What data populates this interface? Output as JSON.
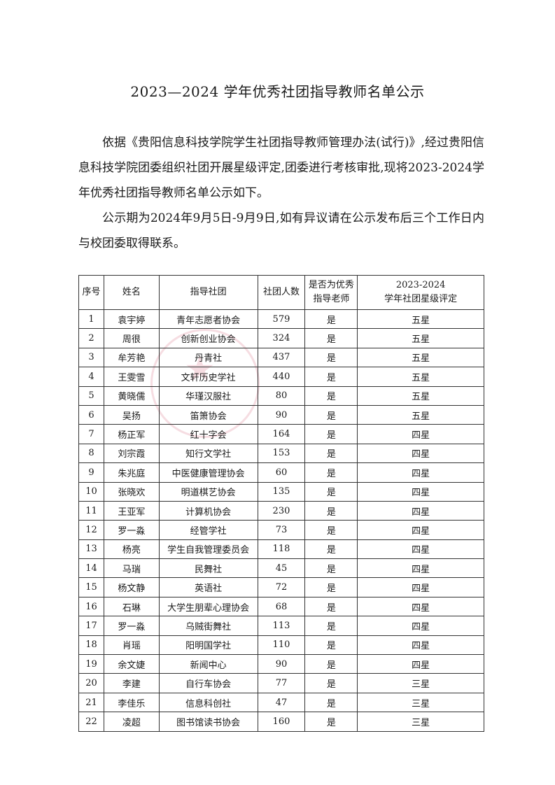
{
  "title": "2023—2024 学年优秀社团指导教师名单公示",
  "paragraphs": [
    "依据《贵阳信息科技学院学生社团指导教师管理办法(试行)》,经过贵阳信息科技学院团委组织社团开展星级评定,团委进行考核审批,现将2023-2024学年优秀社团指导教师名单公示如下。",
    "公示期为2024年9月5日-9月9日,如有异议请在公示发布后三个工作日内与校团委取得联系。"
  ],
  "table": {
    "headers": [
      "序号",
      "姓名",
      "指导社团",
      "社团人数",
      "是否为优秀\n指导老师",
      "2023-2024\n学年社团星级评定"
    ],
    "rows": [
      [
        "1",
        "袁宇婷",
        "青年志愿者协会",
        "579",
        "是",
        "五星"
      ],
      [
        "2",
        "周很",
        "创新创业协会",
        "324",
        "是",
        "五星"
      ],
      [
        "3",
        "牟芳艳",
        "丹青社",
        "437",
        "是",
        "五星"
      ],
      [
        "4",
        "王雯雪",
        "文轩历史学社",
        "440",
        "是",
        "五星"
      ],
      [
        "5",
        "黄晓儒",
        "华瑾汉服社",
        "80",
        "是",
        "五星"
      ],
      [
        "6",
        "吴扬",
        "笛箫协会",
        "90",
        "是",
        "五星"
      ],
      [
        "7",
        "杨正军",
        "红十字会",
        "164",
        "是",
        "四星"
      ],
      [
        "8",
        "刘宗霞",
        "知行文学社",
        "153",
        "是",
        "四星"
      ],
      [
        "9",
        "朱兆庭",
        "中医健康管理协会",
        "60",
        "是",
        "四星"
      ],
      [
        "10",
        "张晓欢",
        "明道棋艺协会",
        "135",
        "是",
        "四星"
      ],
      [
        "11",
        "王亚军",
        "计算机协会",
        "230",
        "是",
        "四星"
      ],
      [
        "12",
        "罗一淼",
        "经管学社",
        "73",
        "是",
        "四星"
      ],
      [
        "13",
        "杨亮",
        "学生自我管理委员会",
        "118",
        "是",
        "四星"
      ],
      [
        "14",
        "马瑞",
        "民舞社",
        "45",
        "是",
        "四星"
      ],
      [
        "15",
        "杨文静",
        "英语社",
        "72",
        "是",
        "四星"
      ],
      [
        "16",
        "石琳",
        "大学生朋辈心理协会",
        "68",
        "是",
        "四星"
      ],
      [
        "17",
        "罗一淼",
        "乌贼街舞社",
        "113",
        "是",
        "四星"
      ],
      [
        "18",
        "肖瑶",
        "阳明国学社",
        "110",
        "是",
        "四星"
      ],
      [
        "19",
        "余文婕",
        "新闻中心",
        "90",
        "是",
        "四星"
      ],
      [
        "20",
        "李建",
        "自行车协会",
        "77",
        "是",
        "三星"
      ],
      [
        "21",
        "李佳乐",
        "信息科创社",
        "47",
        "是",
        "三星"
      ],
      [
        "22",
        "凌超",
        "图书馆读书协会",
        "160",
        "是",
        "三星"
      ]
    ]
  }
}
